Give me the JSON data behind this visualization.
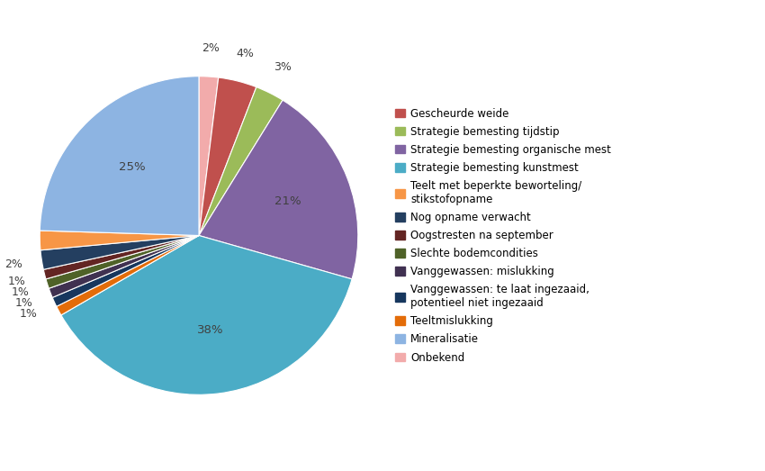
{
  "labels": [
    "Onbekend",
    "Gescheurde weide",
    "Strategie bemesting tijdstip",
    "Strategie bemesting organische mest",
    "Strategie bemesting kunstmest",
    "Teeltmislukking",
    "Vanggewassen: te laat ingezaaid,\npotentieel niet ingezaaid",
    "Vanggewassen: mislukking",
    "Slechte bodemcondities",
    "Oogstresten na september",
    "Nog opname verwacht",
    "Teelt met beperkte beworteling/\nstikstofopname",
    "Mineralisatie"
  ],
  "values": [
    2,
    4,
    3,
    21,
    38,
    1,
    1,
    1,
    1,
    1,
    2,
    2,
    25
  ],
  "colors": [
    "#F2ABAB",
    "#C0504D",
    "#9BBB59",
    "#8064A2",
    "#4BACC6",
    "#E36C09",
    "#17375E",
    "#403151",
    "#4F6228",
    "#632523",
    "#243F60",
    "#F79646",
    "#8DB4E2"
  ],
  "pct_labels": [
    "2%",
    "4%",
    "3%",
    "21%",
    "38%",
    "1%",
    "1%",
    "1%",
    "1%",
    "1%",
    "2%",
    "2%",
    "25%"
  ],
  "pct_show": [
    true,
    true,
    true,
    true,
    true,
    false,
    true,
    true,
    true,
    true,
    true,
    false,
    true
  ],
  "legend_labels": [
    "Gescheurde weide",
    "Strategie bemesting tijdstip",
    "Strategie bemesting organische mest",
    "Strategie bemesting kunstmest",
    "Teelt met beperkte beworteling/\nstikstofopname",
    "Nog opname verwacht",
    "Oogstresten na september",
    "Slechte bodemcondities",
    "Vanggewassen: mislukking",
    "Vanggewassen: te laat ingezaaid,\npotentieel niet ingezaaid",
    "Teeltmislukking",
    "Mineralisatie",
    "Onbekend"
  ],
  "legend_colors": [
    "#C0504D",
    "#9BBB59",
    "#8064A2",
    "#4BACC6",
    "#F79646",
    "#243F60",
    "#632523",
    "#4F6228",
    "#403151",
    "#17375E",
    "#E36C09",
    "#8DB4E2",
    "#F2ABAB"
  ],
  "background_color": "#FFFFFF",
  "start_angle": 90,
  "figsize": [
    8.5,
    5.23
  ]
}
